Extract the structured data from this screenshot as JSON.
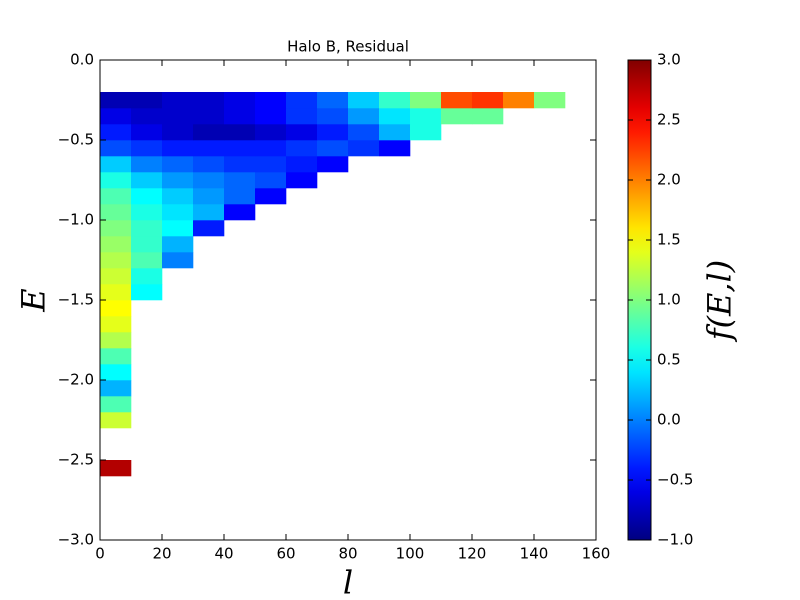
{
  "chart_data": {
    "type": "heatmap",
    "title": "Halo B, Residual",
    "xlabel": "l",
    "ylabel": "E",
    "colorbar_label": "f(E,l)",
    "colormap": "jet",
    "xbins": [
      0,
      10,
      20,
      30,
      40,
      50,
      60,
      70,
      80,
      90,
      100,
      110,
      120,
      130,
      140,
      150,
      160
    ],
    "ybins": [
      -3,
      -2.9,
      -2.8,
      -2.7,
      -2.6,
      -2.5,
      -2.4,
      -2.3,
      -2.2,
      -2.1,
      -2,
      -1.9,
      -1.8,
      -1.7,
      -1.6,
      -1.5,
      -1.4,
      -1.3,
      -1.2,
      -1.1,
      -1,
      -0.9,
      -0.8,
      -0.7,
      -0.6,
      -0.5,
      -0.4,
      -0.3,
      -0.2,
      -0.1,
      0
    ],
    "z": [
      [
        null,
        null,
        null,
        null,
        null,
        null,
        null,
        null,
        null,
        null,
        null,
        null,
        null,
        null,
        null,
        null
      ],
      [
        null,
        null,
        null,
        null,
        null,
        null,
        null,
        null,
        null,
        null,
        null,
        null,
        null,
        null,
        null,
        null
      ],
      [
        null,
        null,
        null,
        null,
        null,
        null,
        null,
        null,
        null,
        null,
        null,
        null,
        null,
        null,
        null,
        null
      ],
      [
        null,
        null,
        null,
        null,
        null,
        null,
        null,
        null,
        null,
        null,
        null,
        null,
        null,
        null,
        null,
        null
      ],
      [
        2.8,
        null,
        null,
        null,
        null,
        null,
        null,
        null,
        null,
        null,
        null,
        null,
        null,
        null,
        null,
        null
      ],
      [
        null,
        null,
        null,
        null,
        null,
        null,
        null,
        null,
        null,
        null,
        null,
        null,
        null,
        null,
        null,
        null
      ],
      [
        null,
        null,
        null,
        null,
        null,
        null,
        null,
        null,
        null,
        null,
        null,
        null,
        null,
        null,
        null,
        null
      ],
      [
        1.3,
        null,
        null,
        null,
        null,
        null,
        null,
        null,
        null,
        null,
        null,
        null,
        null,
        null,
        null,
        null
      ],
      [
        0.8,
        null,
        null,
        null,
        null,
        null,
        null,
        null,
        null,
        null,
        null,
        null,
        null,
        null,
        null,
        null
      ],
      [
        0.2,
        null,
        null,
        null,
        null,
        null,
        null,
        null,
        null,
        null,
        null,
        null,
        null,
        null,
        null,
        null
      ],
      [
        0.5,
        null,
        null,
        null,
        null,
        null,
        null,
        null,
        null,
        null,
        null,
        null,
        null,
        null,
        null,
        null
      ],
      [
        0.8,
        null,
        null,
        null,
        null,
        null,
        null,
        null,
        null,
        null,
        null,
        null,
        null,
        null,
        null,
        null
      ],
      [
        1.2,
        null,
        null,
        null,
        null,
        null,
        null,
        null,
        null,
        null,
        null,
        null,
        null,
        null,
        null,
        null
      ],
      [
        1.4,
        null,
        null,
        null,
        null,
        null,
        null,
        null,
        null,
        null,
        null,
        null,
        null,
        null,
        null,
        null
      ],
      [
        1.5,
        null,
        null,
        null,
        null,
        null,
        null,
        null,
        null,
        null,
        null,
        null,
        null,
        null,
        null,
        null
      ],
      [
        1.4,
        0.5,
        null,
        null,
        null,
        null,
        null,
        null,
        null,
        null,
        null,
        null,
        null,
        null,
        null,
        null
      ],
      [
        1.3,
        0.6,
        null,
        null,
        null,
        null,
        null,
        null,
        null,
        null,
        null,
        null,
        null,
        null,
        null,
        null
      ],
      [
        1.2,
        0.8,
        0.0,
        null,
        null,
        null,
        null,
        null,
        null,
        null,
        null,
        null,
        null,
        null,
        null,
        null
      ],
      [
        1.1,
        0.7,
        0.2,
        null,
        null,
        null,
        null,
        null,
        null,
        null,
        null,
        null,
        null,
        null,
        null,
        null
      ],
      [
        1.0,
        0.7,
        0.5,
        -0.4,
        null,
        null,
        null,
        null,
        null,
        null,
        null,
        null,
        null,
        null,
        null,
        null
      ],
      [
        0.9,
        0.6,
        0.4,
        0.2,
        -0.5,
        null,
        null,
        null,
        null,
        null,
        null,
        null,
        null,
        null,
        null,
        null
      ],
      [
        0.8,
        0.5,
        0.3,
        0.1,
        -0.1,
        -0.5,
        null,
        null,
        null,
        null,
        null,
        null,
        null,
        null,
        null,
        null
      ],
      [
        0.6,
        0.3,
        0.1,
        0.0,
        -0.1,
        -0.2,
        -0.5,
        null,
        null,
        null,
        null,
        null,
        null,
        null,
        null,
        null
      ],
      [
        0.3,
        0.0,
        -0.1,
        -0.2,
        -0.3,
        -0.3,
        -0.4,
        -0.5,
        null,
        null,
        null,
        null,
        null,
        null,
        null,
        null
      ],
      [
        -0.2,
        -0.3,
        -0.4,
        -0.4,
        -0.4,
        -0.4,
        -0.3,
        -0.2,
        -0.3,
        -0.5,
        null,
        null,
        null,
        null,
        null,
        null
      ],
      [
        -0.4,
        -0.6,
        -0.7,
        -0.8,
        -0.8,
        -0.7,
        -0.6,
        -0.4,
        -0.2,
        0.2,
        0.6,
        null,
        null,
        null,
        null,
        null
      ],
      [
        -0.6,
        -0.7,
        -0.7,
        -0.7,
        -0.6,
        -0.5,
        -0.3,
        -0.2,
        0.1,
        0.4,
        0.6,
        0.9,
        0.9,
        null,
        null,
        null
      ],
      [
        -0.8,
        -0.8,
        -0.7,
        -0.7,
        -0.6,
        -0.5,
        -0.3,
        -0.1,
        0.3,
        0.7,
        1.0,
        2.2,
        2.3,
        2.0,
        1.0,
        null
      ],
      [
        null,
        null,
        null,
        null,
        null,
        null,
        null,
        null,
        null,
        null,
        null,
        null,
        null,
        null,
        null,
        null
      ],
      [
        null,
        null,
        null,
        null,
        null,
        null,
        null,
        null,
        null,
        null,
        null,
        null,
        null,
        null,
        null,
        null
      ]
    ],
    "xlim": [
      0,
      160
    ],
    "xticks": [
      0,
      20,
      40,
      60,
      80,
      100,
      120,
      140,
      160
    ],
    "ylim": [
      -3,
      0
    ],
    "yticks": [
      {
        "value": -3,
        "label": "−3.0"
      },
      {
        "value": -2.5,
        "label": "−2.5"
      },
      {
        "value": -2,
        "label": "−2.0"
      },
      {
        "value": -1.5,
        "label": "−1.5"
      },
      {
        "value": -1,
        "label": "−1.0"
      },
      {
        "value": -0.5,
        "label": "−0.5"
      },
      {
        "value": 0,
        "label": "0.0"
      }
    ],
    "clim": [
      -1,
      3
    ],
    "cticks": [
      {
        "value": -1,
        "label": "−1.0"
      },
      {
        "value": -0.5,
        "label": "−0.5"
      },
      {
        "value": 0,
        "label": "0.0"
      },
      {
        "value": 0.5,
        "label": "0.5"
      },
      {
        "value": 1,
        "label": "1.0"
      },
      {
        "value": 1.5,
        "label": "1.5"
      },
      {
        "value": 2,
        "label": "2.0"
      },
      {
        "value": 2.5,
        "label": "2.5"
      },
      {
        "value": 3,
        "label": "3.0"
      }
    ]
  }
}
